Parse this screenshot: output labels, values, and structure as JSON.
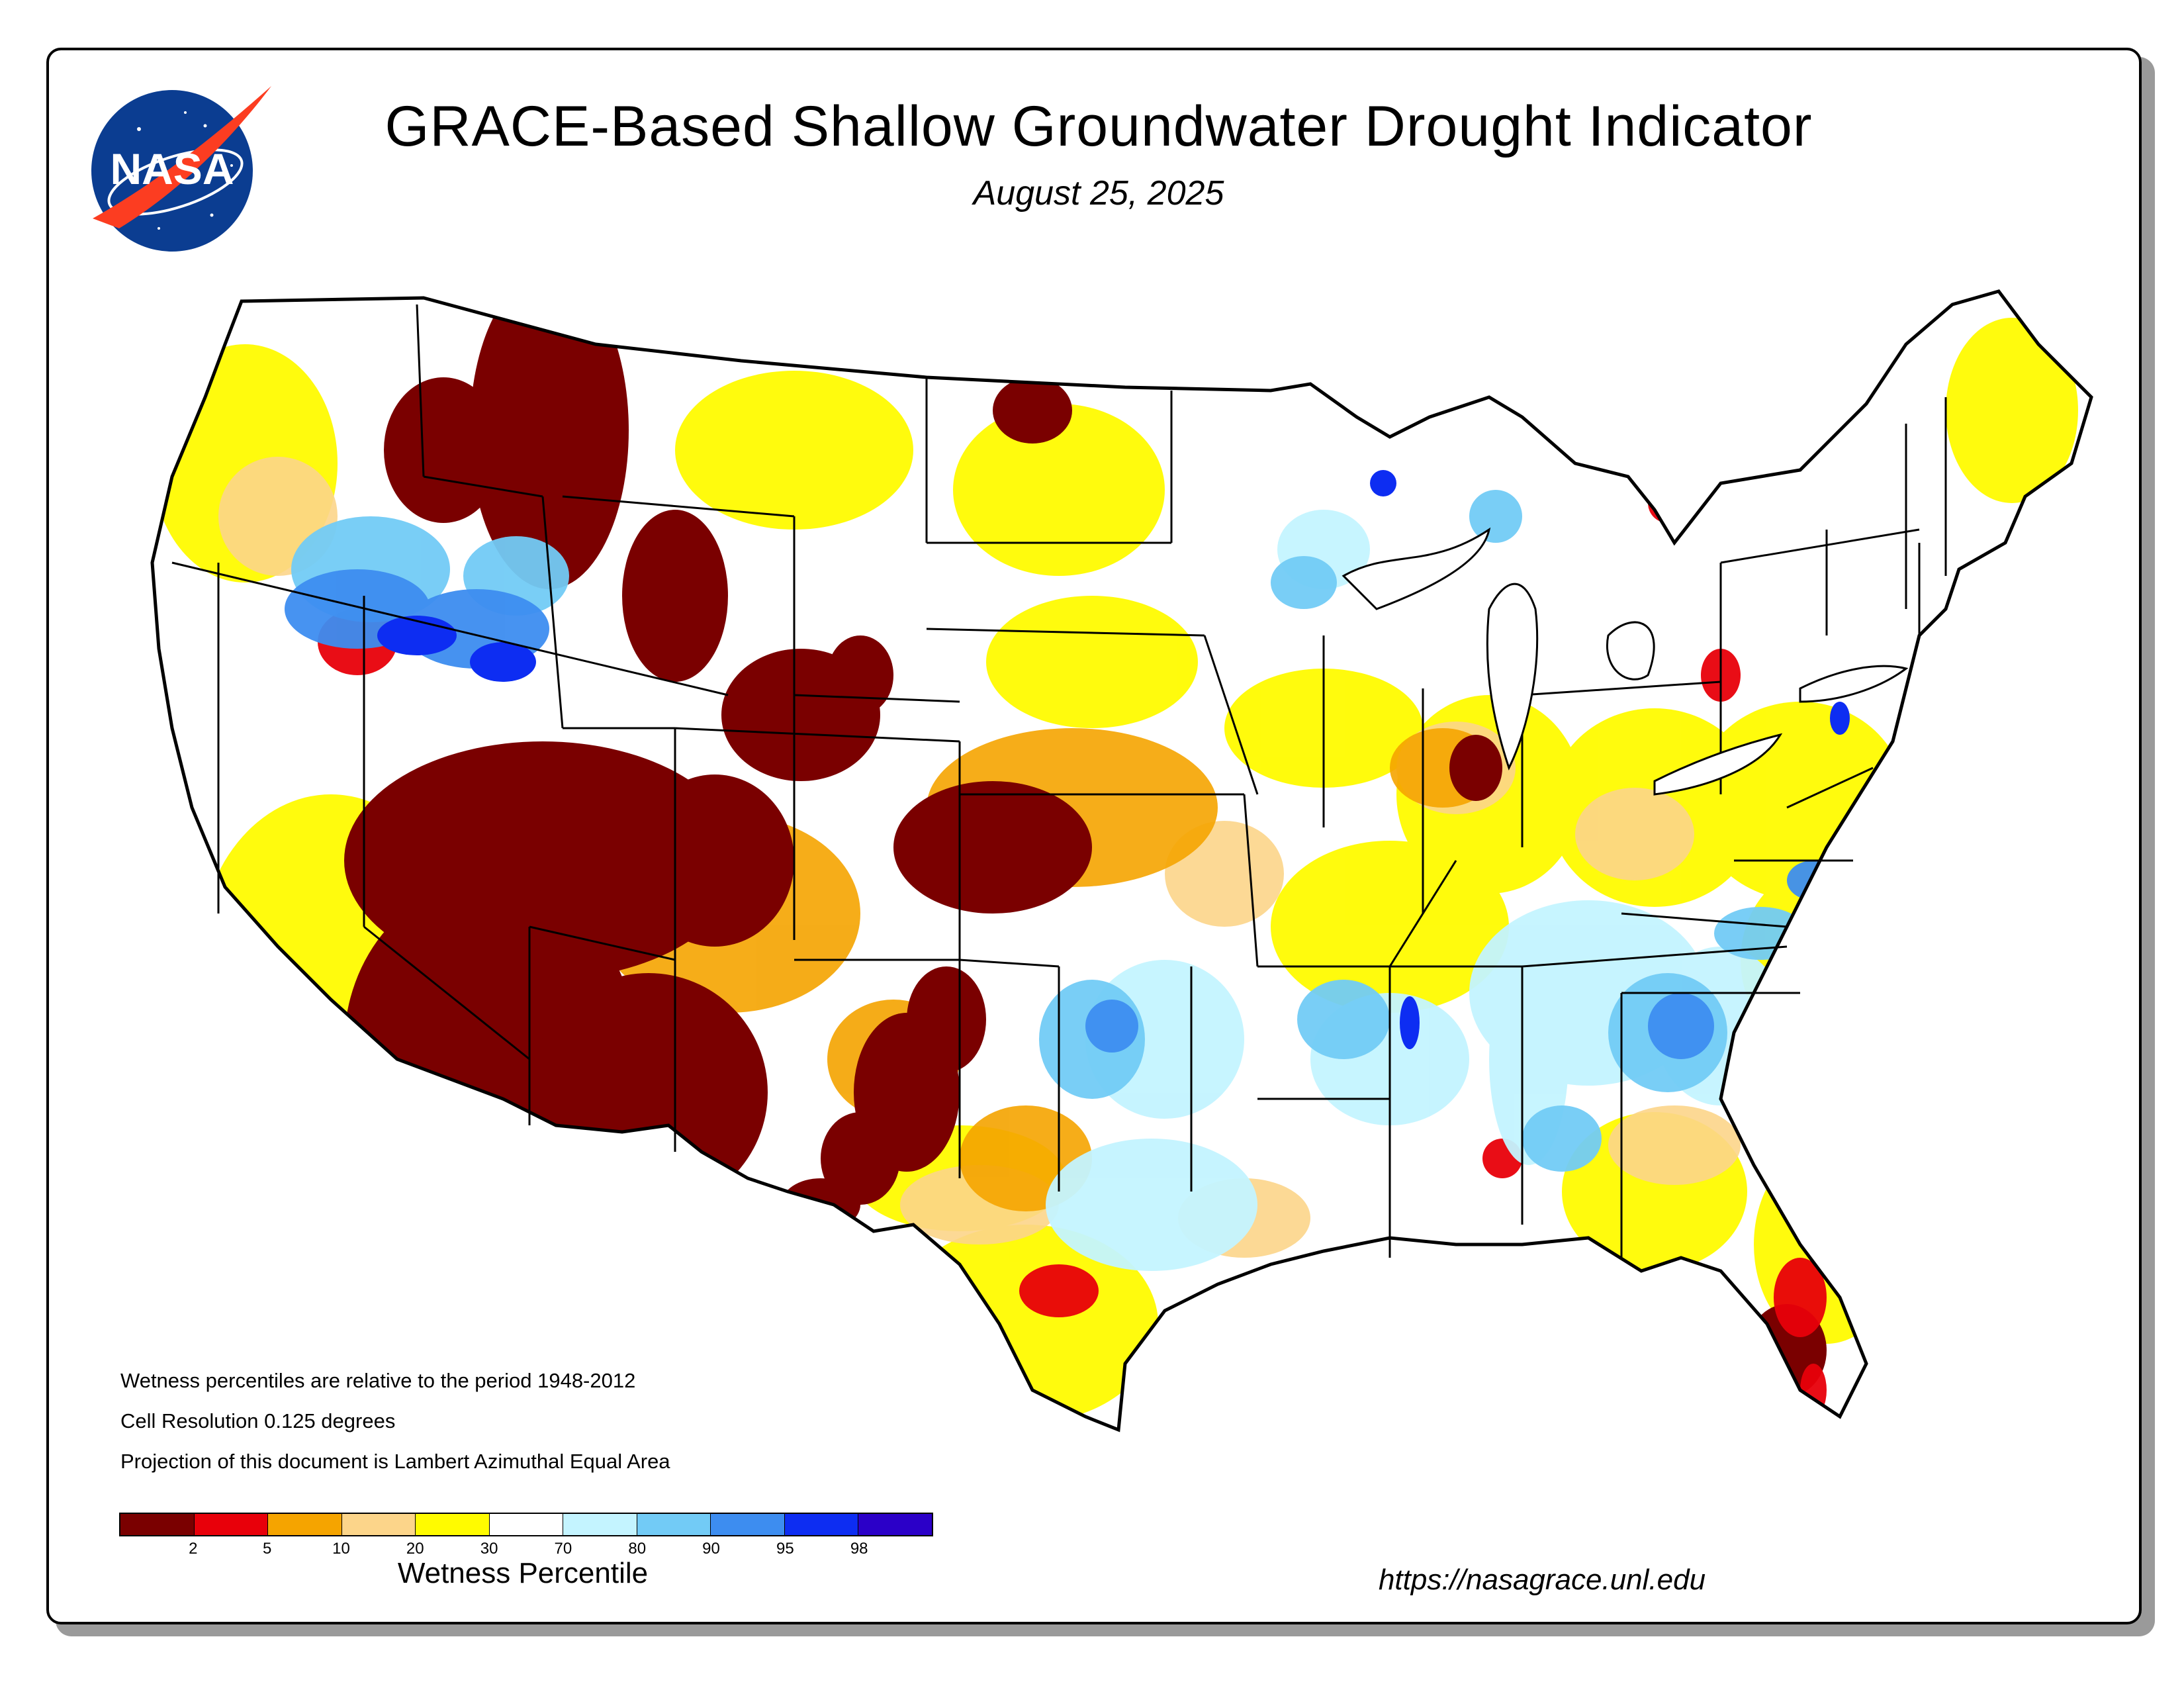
{
  "header": {
    "title": "GRACE-Based Shallow Groundwater Drought Indicator",
    "date": "August 25, 2025"
  },
  "logo": {
    "text": "NASA",
    "icon": "nasa-meatball-logo"
  },
  "notes": [
    "Wetness percentiles are relative to the period 1948-2012",
    "Cell Resolution 0.125 degrees",
    "Projection of this document is Lambert Azimuthal Equal Area"
  ],
  "legend": {
    "title": "Wetness Percentile",
    "colors": [
      "#7a0000",
      "#e8000a",
      "#f5a400",
      "#fcd58a",
      "#fffb00",
      "#ffffff",
      "#c4f4ff",
      "#72cbf6",
      "#3d8df0",
      "#0d2df2",
      "#2b00c8"
    ],
    "tick_labels": [
      "2",
      "5",
      "10",
      "20",
      "30",
      "70",
      "80",
      "90",
      "95",
      "98"
    ]
  },
  "footer": {
    "url": "https://nasagrace.unl.edu"
  },
  "map": {
    "region": "Contiguous United States",
    "dominant_conditions": [
      {
        "area": "Southwest & Great Basin",
        "class": "0-2"
      },
      {
        "area": "Northern Rockies",
        "class": "0-2"
      },
      {
        "area": "Colorado / Kansas",
        "class": "0-10"
      },
      {
        "area": "Northern Nevada / Southern Idaho",
        "class": "90-98"
      },
      {
        "area": "Oklahoma / Arkansas / Southeast",
        "class": "70-95"
      },
      {
        "area": "Ohio Valley / Midwest",
        "class": "10-30"
      },
      {
        "area": "Central Florida",
        "class": "0-5"
      },
      {
        "area": "Texas",
        "class": "5-30"
      }
    ]
  }
}
